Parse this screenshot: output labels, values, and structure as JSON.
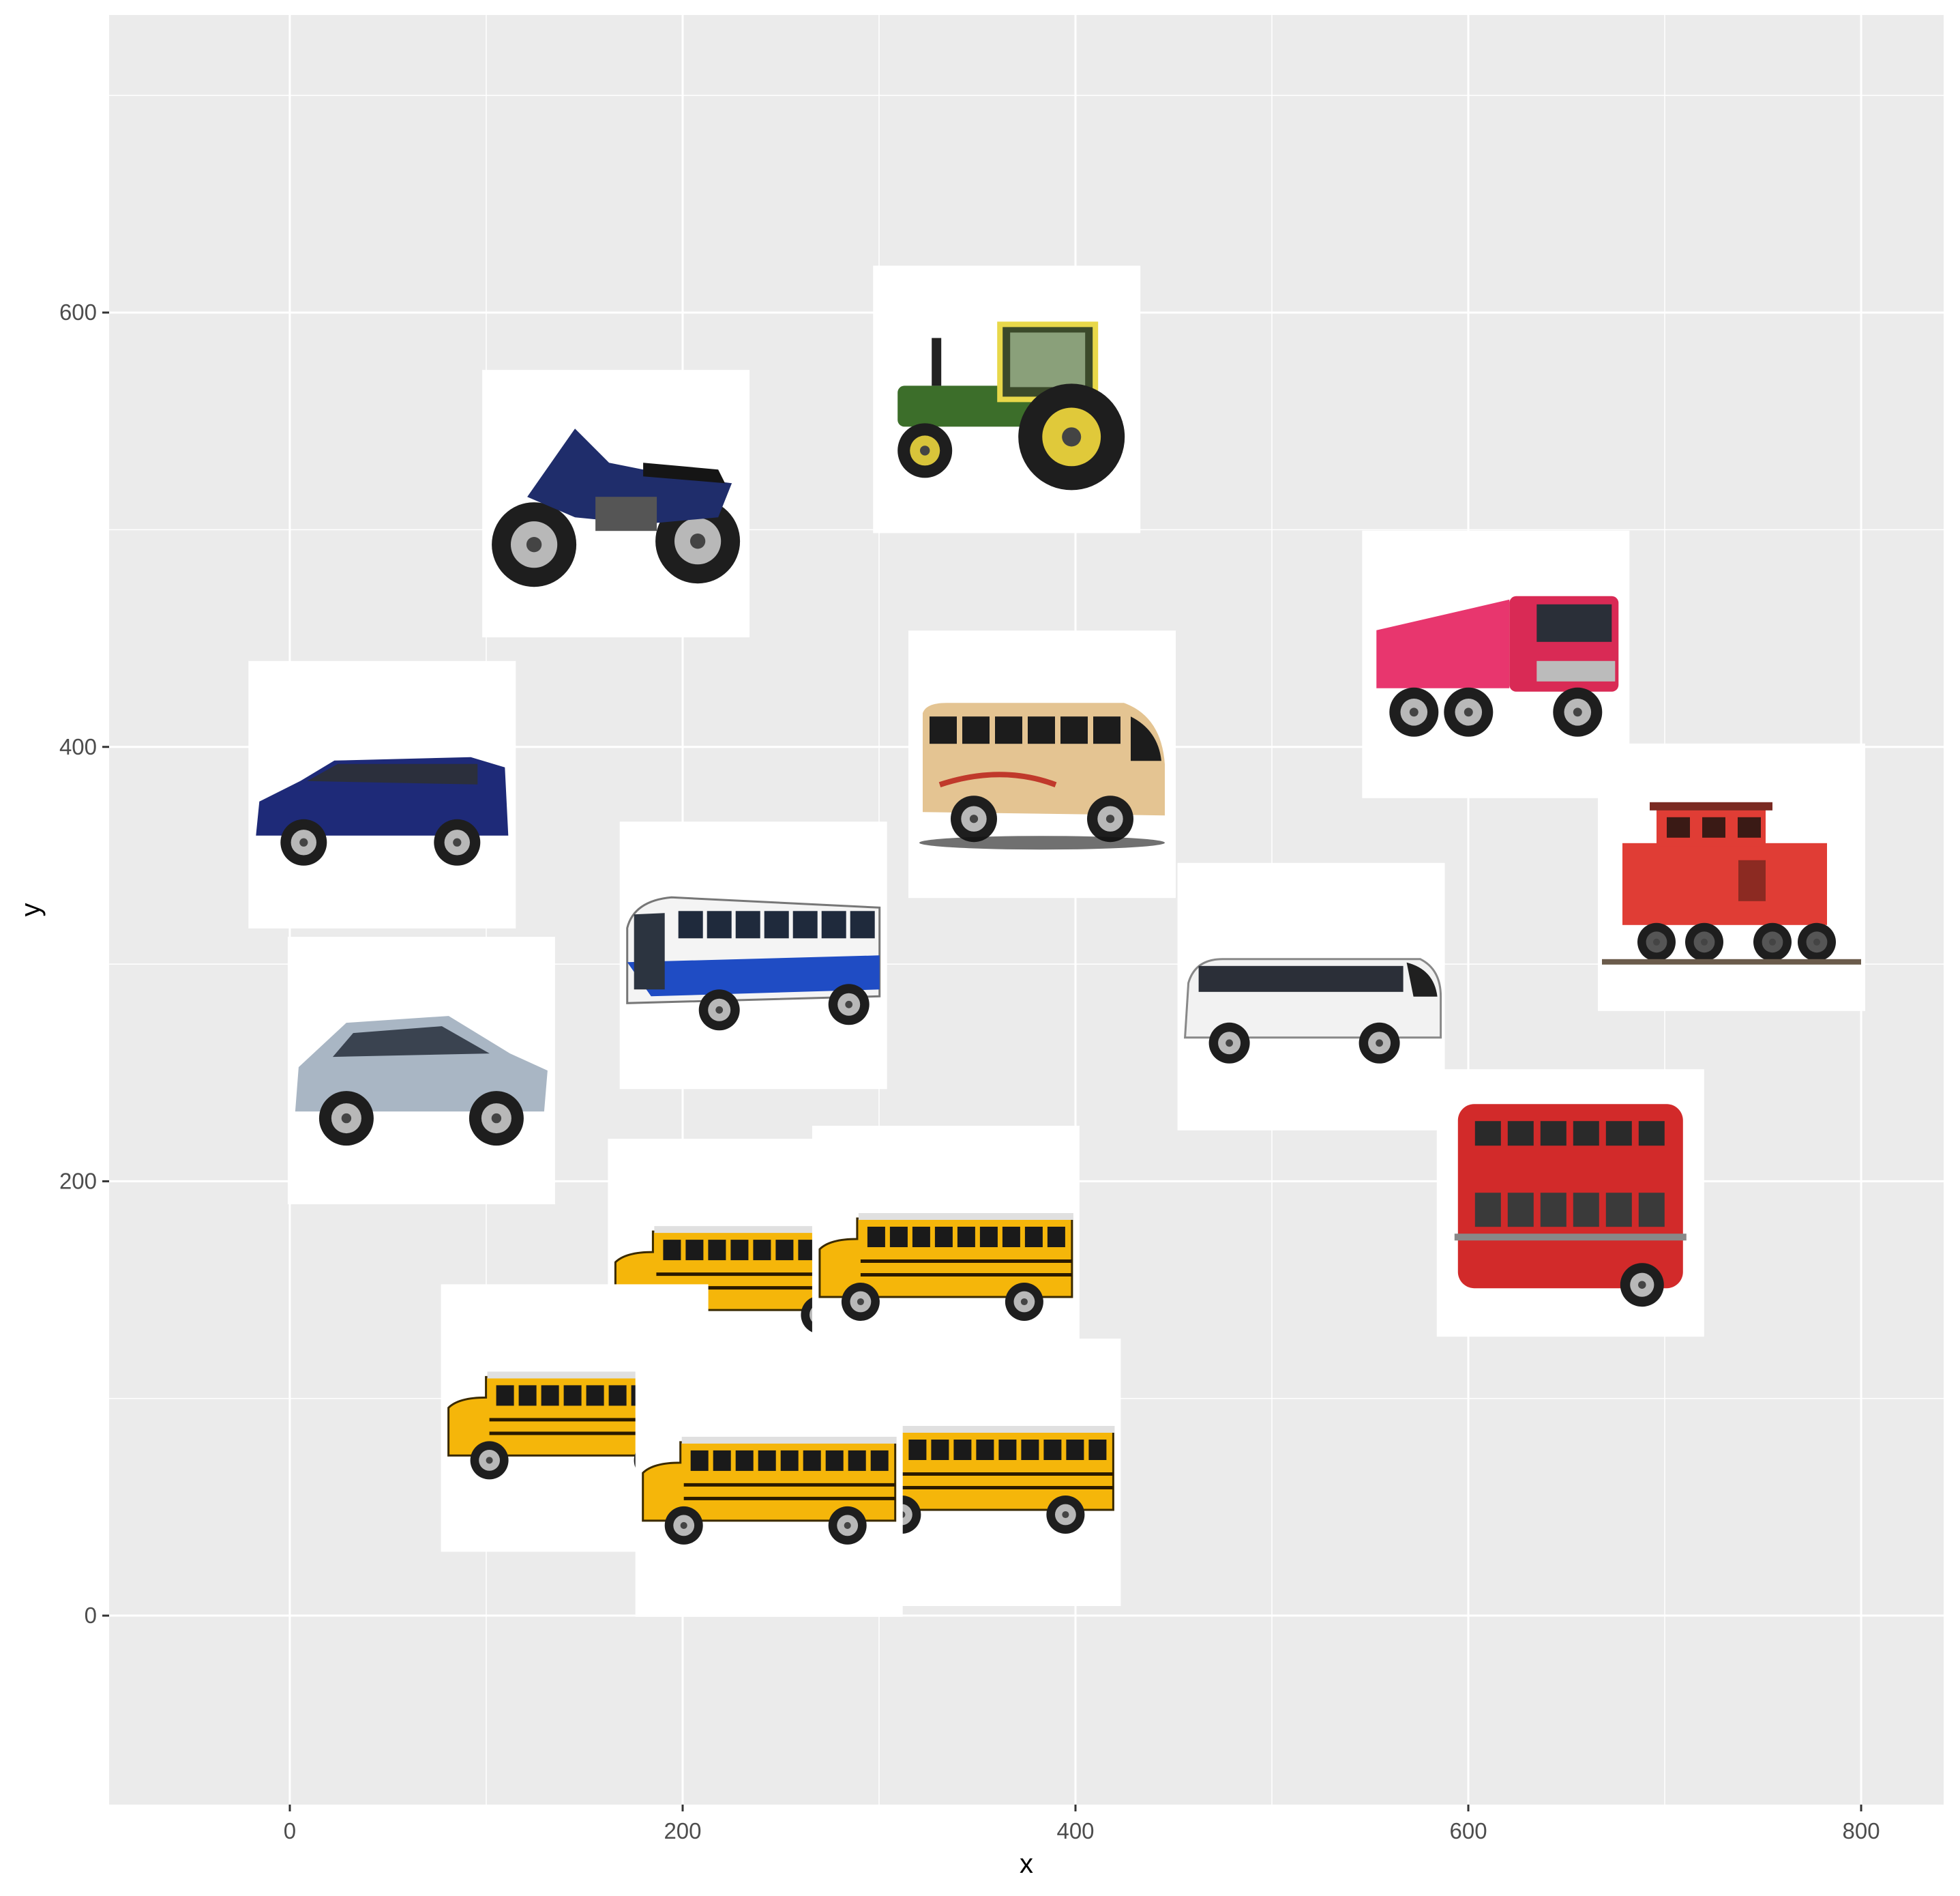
{
  "chart_data": {
    "type": "scatter",
    "marker": "image-thumbnail",
    "xlabel": "x",
    "ylabel": "y",
    "xlim": [
      -92,
      842
    ],
    "ylim": [
      -87,
      737
    ],
    "x_ticks": [
      0,
      200,
      400,
      600,
      800
    ],
    "y_ticks": [
      0,
      200,
      400,
      600
    ],
    "grid": true,
    "legend": "none",
    "colors": {
      "panel_background": "#ebebeb",
      "grid": "#ffffff",
      "tick_text": "#4d4d4d"
    },
    "points": [
      {
        "x": 365,
        "y": 560,
        "icon": "tractor-icon"
      },
      {
        "x": 166,
        "y": 512,
        "icon": "motorcycle-icon"
      },
      {
        "x": 614,
        "y": 438,
        "icon": "dump-truck-icon"
      },
      {
        "x": 47,
        "y": 378,
        "icon": "minivan-icon"
      },
      {
        "x": 383,
        "y": 392,
        "icon": "minibus-icon"
      },
      {
        "x": 236,
        "y": 304,
        "icon": "city-bus-icon"
      },
      {
        "x": 520,
        "y": 285,
        "icon": "coach-bus-icon"
      },
      {
        "x": 734,
        "y": 340,
        "icon": "train-caboose-icon"
      },
      {
        "x": 67,
        "y": 251,
        "icon": "hatchback-car-icon"
      },
      {
        "x": 652,
        "y": 190,
        "icon": "double-decker-bus-icon"
      },
      {
        "x": 230,
        "y": 158,
        "icon": "school-bus-icon"
      },
      {
        "x": 334,
        "y": 164,
        "icon": "school-bus-icon"
      },
      {
        "x": 145,
        "y": 91,
        "icon": "school-bus-icon"
      },
      {
        "x": 355,
        "y": 66,
        "icon": "school-bus-icon"
      },
      {
        "x": 244,
        "y": 61,
        "icon": "school-bus-icon"
      }
    ]
  }
}
